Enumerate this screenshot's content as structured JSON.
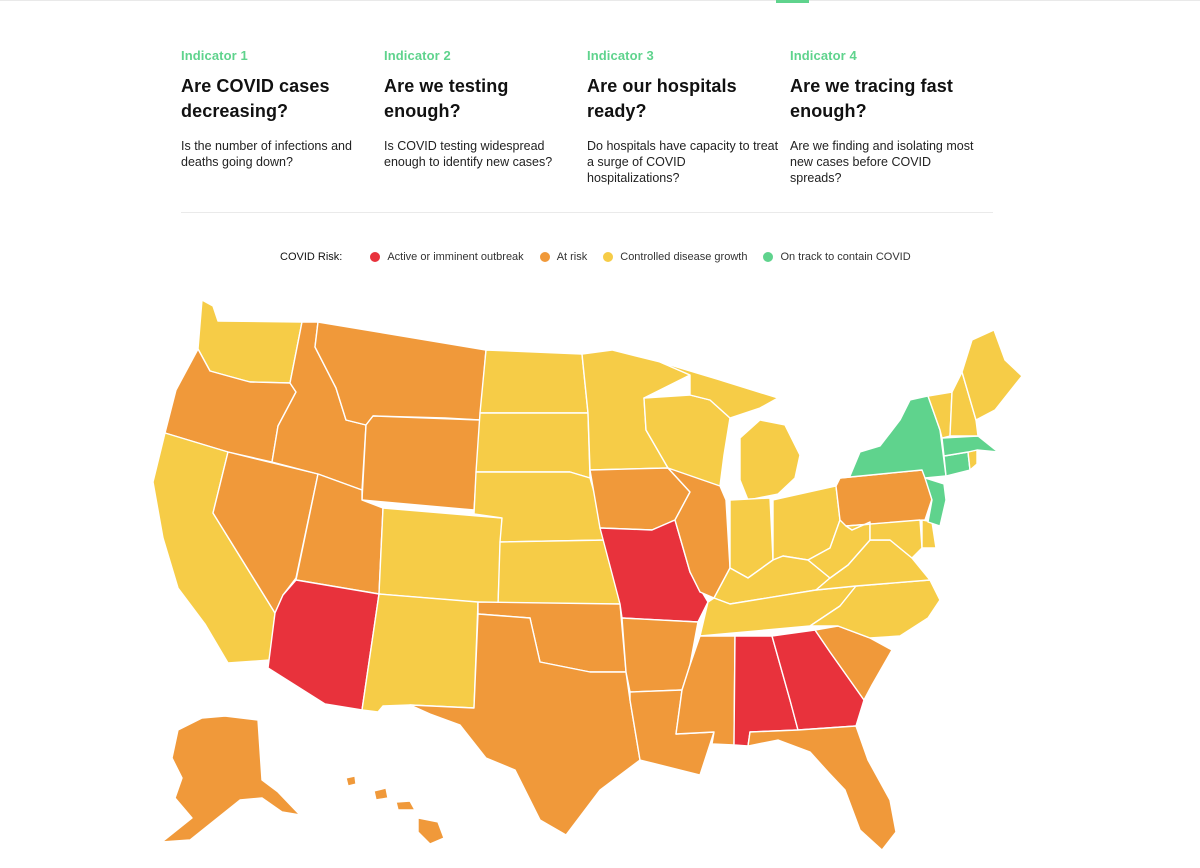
{
  "indicators": [
    {
      "kicker": "Indicator 1",
      "title": "Are COVID cases decreasing?",
      "desc": "Is the number of infections and deaths going down?"
    },
    {
      "kicker": "Indicator 2",
      "title": "Are we testing enough?",
      "desc": "Is COVID testing widespread enough to identify new cases?"
    },
    {
      "kicker": "Indicator 3",
      "title": "Are our hospitals ready?",
      "desc": "Do hospitals have capacity to treat a surge of COVID hospitalizations?"
    },
    {
      "kicker": "Indicator 4",
      "title": "Are we tracing fast enough?",
      "desc": "Are we finding and isolating most new cases before COVID spreads?"
    }
  ],
  "legend": {
    "title": "COVID Risk:",
    "items": [
      {
        "key": "red",
        "label": "Active or imminent outbreak",
        "color": "#e8323c"
      },
      {
        "key": "orange",
        "label": "At risk",
        "color": "#f0993a"
      },
      {
        "key": "yellow",
        "label": "Controlled disease growth",
        "color": "#f6cc47"
      },
      {
        "key": "green",
        "label": "On track to contain COVID",
        "color": "#5fd38d"
      }
    ]
  },
  "colors": {
    "accent": "#5fd38d"
  },
  "state_risk": {
    "WA": "yellow",
    "OR": "orange",
    "CA": "yellow",
    "NV": "orange",
    "ID": "orange",
    "MT": "orange",
    "WY": "orange",
    "UT": "orange",
    "AZ": "red",
    "CO": "yellow",
    "NM": "yellow",
    "ND": "yellow",
    "SD": "yellow",
    "NE": "yellow",
    "KS": "yellow",
    "OK": "orange",
    "TX": "orange",
    "MN": "yellow",
    "IA": "orange",
    "MO": "red",
    "AR": "orange",
    "LA": "orange",
    "WI": "yellow",
    "IL": "orange",
    "MI": "yellow",
    "IN": "yellow",
    "OH": "yellow",
    "KY": "yellow",
    "TN": "yellow",
    "MS": "orange",
    "AL": "red",
    "GA": "red",
    "FL": "orange",
    "SC": "orange",
    "NC": "yellow",
    "VA": "yellow",
    "WV": "yellow",
    "PA": "orange",
    "NY": "green",
    "NJ": "green",
    "MD": "yellow",
    "DE": "yellow",
    "CT": "green",
    "RI": "yellow",
    "MA": "green",
    "VT": "yellow",
    "NH": "yellow",
    "ME": "yellow",
    "AK": "orange",
    "HI": "orange"
  }
}
